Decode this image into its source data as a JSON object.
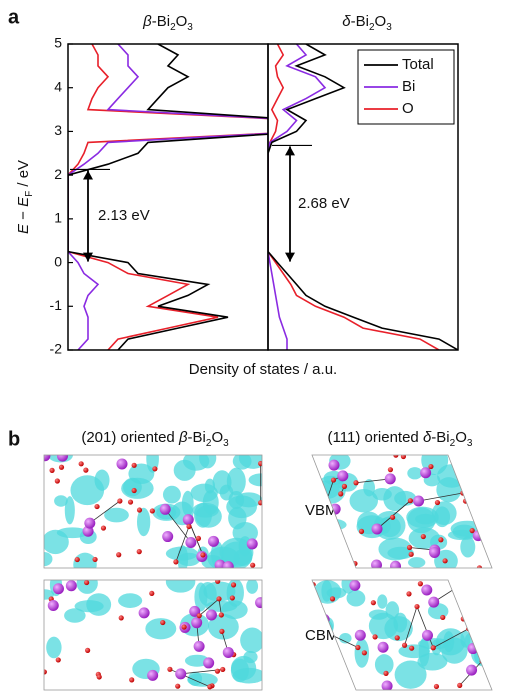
{
  "panel_labels": [
    "a",
    "b"
  ],
  "chart_data": [
    {
      "type": "line",
      "title": "β-Bi2O3",
      "ylabel": "E − EF / eV",
      "xlabel": "Density of states / a.u.",
      "energies": [
        -2,
        -1.75,
        -1.5,
        -1.25,
        -1,
        -0.75,
        -0.5,
        -0.25,
        0,
        0.25,
        0.5,
        0.75,
        1,
        1.25,
        1.5,
        1.75,
        2,
        2.25,
        2.5,
        2.75,
        3,
        3.25,
        3.5,
        3.75,
        4,
        4.25,
        4.5,
        4.75,
        5
      ],
      "series": [
        {
          "color": "#000000",
          "values": [
            0.25,
            0.3,
            0.55,
            0.8,
            0.45,
            0.6,
            0.7,
            0.35,
            0.3,
            0,
            0,
            0,
            0,
            0,
            0,
            0,
            0,
            0.2,
            0.35,
            0.4,
            1.2,
            1.2,
            0.4,
            0.45,
            0.5,
            0.6,
            0.5,
            0.55,
            0.45
          ]
        },
        {
          "color": "#8a2be2",
          "values": [
            0.05,
            0.1,
            0.1,
            0.1,
            0.08,
            0.1,
            0.15,
            0.08,
            0.05,
            0,
            0,
            0,
            0,
            0,
            0,
            0,
            0,
            0.08,
            0.15,
            0.2,
            1.2,
            1.2,
            0.2,
            0.25,
            0.3,
            0.35,
            0.3,
            0.3,
            0.25
          ]
        },
        {
          "color": "#e8202a",
          "values": [
            0.2,
            0.25,
            0.5,
            0.75,
            0.4,
            0.5,
            0.6,
            0.3,
            0.2,
            0,
            0,
            0,
            0,
            0,
            0,
            0,
            0,
            0.05,
            0.08,
            0.1,
            1.2,
            1.2,
            0.1,
            0.12,
            0.15,
            0.2,
            0.15,
            0.15,
            0.12
          ]
        }
      ],
      "xlim": [
        0,
        1
      ],
      "ylim": [
        -2,
        5
      ],
      "yticks": [
        -2,
        -1,
        0,
        1,
        2,
        3,
        4,
        5
      ],
      "annotation": {
        "text": "2.13 eV",
        "from": 0,
        "to": 2.13
      }
    },
    {
      "type": "line",
      "title": "δ-Bi2O3",
      "energies": [
        -2,
        -1.75,
        -1.5,
        -1.25,
        -1,
        -0.75,
        -0.5,
        -0.25,
        0,
        0.25,
        0.5,
        0.75,
        1,
        1.25,
        1.5,
        1.75,
        2,
        2.25,
        2.5,
        2.75,
        3,
        3.25,
        3.5,
        3.75,
        4,
        4.25,
        4.5,
        4.75,
        5
      ],
      "series": [
        {
          "name": "Total",
          "color": "#000000",
          "values": [
            1.0,
            0.9,
            0.6,
            0.45,
            0.3,
            0.2,
            0.15,
            0.1,
            0.05,
            0,
            0,
            0,
            0,
            0,
            0,
            0,
            0,
            0,
            0,
            0.02,
            0.15,
            0.2,
            0.1,
            0.25,
            0.4,
            0.3,
            0.15,
            0.3,
            0.2
          ]
        },
        {
          "name": "Bi",
          "color": "#8a2be2",
          "values": [
            0.1,
            0.1,
            0.08,
            0.06,
            0.05,
            0.04,
            0.03,
            0.02,
            0.01,
            0,
            0,
            0,
            0,
            0,
            0,
            0,
            0,
            0,
            0,
            0.01,
            0.1,
            0.15,
            0.08,
            0.2,
            0.3,
            0.25,
            0.1,
            0.2,
            0.15
          ]
        },
        {
          "name": "O",
          "color": "#e8202a",
          "values": [
            0.9,
            0.8,
            0.5,
            0.4,
            0.25,
            0.15,
            0.12,
            0.08,
            0.04,
            0,
            0,
            0,
            0,
            0,
            0,
            0,
            0,
            0,
            0,
            0.01,
            0.04,
            0.05,
            0.02,
            0.05,
            0.08,
            0.05,
            0.04,
            0.08,
            0.05
          ]
        }
      ],
      "xlim": [
        0,
        1
      ],
      "ylim": [
        -2,
        5
      ],
      "legend": "upper right",
      "annotation": {
        "text": "2.68 eV",
        "from": 0,
        "to": 2.68
      }
    }
  ],
  "structures": {
    "titles": [
      "(201) oriented β-Bi2O3",
      "(111) oriented δ-Bi2O3"
    ],
    "rows": [
      "VBM",
      "CBM"
    ]
  }
}
